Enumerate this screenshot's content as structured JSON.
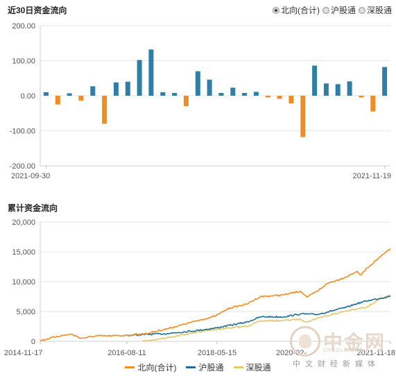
{
  "header": {
    "title_top": "近30日资金流向",
    "radios": [
      {
        "label": "北向(合计)",
        "selected": true
      },
      {
        "label": "沪股通",
        "selected": false
      },
      {
        "label": "深股通",
        "selected": false
      }
    ]
  },
  "title_bottom": "累计资金流向",
  "watermark": {
    "big": "中金网",
    "small": "中文财经新媒体",
    "en": "CNGOLD.ORG"
  },
  "colors": {
    "positive": "#2e7ea6",
    "negative": "#f08c22",
    "north": "#f08c22",
    "sh": "#1e6e96",
    "sz": "#e6c66b",
    "grid": "#e6e6e6"
  },
  "chart_data": [
    {
      "type": "bar",
      "title": "近30日资金流向",
      "ylim": [
        -200,
        200
      ],
      "yticks": [
        "200.00",
        "100.00",
        "0.00",
        "-100.00",
        "-200.00"
      ],
      "x_tick_labels": [
        "2021-09-30",
        "2021-11-19"
      ],
      "grid": true,
      "values": [
        10,
        -25,
        7,
        -14,
        27,
        -80,
        38,
        40,
        102,
        132,
        10,
        8,
        -30,
        70,
        46,
        8,
        23,
        8,
        11,
        -5,
        -9,
        -22,
        -118,
        86,
        35,
        33,
        41,
        -5,
        -45,
        82
      ]
    },
    {
      "type": "line",
      "title": "累计资金流向",
      "ylim": [
        0,
        20000
      ],
      "yticks": [
        "20,000",
        "15,000",
        "10,000",
        "5,000",
        "0"
      ],
      "x_tick_labels": [
        "2014-11-17",
        "2016-08-11",
        "2018-05-15",
        "2020-02-",
        "2021-11-18"
      ],
      "x_range": [
        "2014-11-17",
        "2021-11-18"
      ],
      "legend_position": "bottom",
      "series": [
        {
          "name": "北向(合计)",
          "color": "#f08c22",
          "x": [
            "2014-11-17",
            "2015-03-15",
            "2015-07-01",
            "2015-09-15",
            "2016-01-01",
            "2016-04-01",
            "2016-08-11",
            "2016-12-31",
            "2017-06-01",
            "2017-12-31",
            "2018-05-15",
            "2018-09-01",
            "2018-12-31",
            "2019-04-15",
            "2019-07-01",
            "2019-10-01",
            "2020-02-01",
            "2020-03-20",
            "2020-06-01",
            "2020-08-15",
            "2020-12-31",
            "2021-03-15",
            "2021-04-15",
            "2021-06-01",
            "2021-09-01",
            "2021-11-18"
          ],
          "y": [
            100,
            800,
            1200,
            500,
            900,
            900,
            1000,
            1300,
            2100,
            3400,
            4200,
            5600,
            6200,
            7500,
            7600,
            7800,
            8400,
            7400,
            8400,
            9700,
            10800,
            11700,
            11100,
            12300,
            14100,
            15500
          ]
        },
        {
          "name": "沪股通",
          "color": "#1e6e96",
          "x": [
            "2016-08-11",
            "2017-06-01",
            "2017-12-31",
            "2018-05-15",
            "2018-12-31",
            "2019-04-15",
            "2019-10-01",
            "2020-02-01",
            "2020-06-01",
            "2020-12-31",
            "2021-03-15",
            "2021-06-01",
            "2021-09-01",
            "2021-11-18"
          ],
          "y": [
            1000,
            1300,
            1800,
            2200,
            3200,
            4100,
            4100,
            4600,
            4500,
            5700,
            6300,
            6800,
            7200,
            7600
          ]
        },
        {
          "name": "深股通",
          "color": "#e6c66b",
          "x": [
            "2016-12-05",
            "2017-06-01",
            "2017-12-31",
            "2018-05-15",
            "2018-12-31",
            "2019-04-15",
            "2019-10-01",
            "2020-02-01",
            "2020-03-20",
            "2020-06-01",
            "2020-12-31",
            "2021-03-15",
            "2021-06-01",
            "2021-09-01",
            "2021-11-18"
          ],
          "y": [
            0,
            600,
            1500,
            2000,
            2500,
            3400,
            3500,
            3700,
            3200,
            3900,
            5100,
            5400,
            5800,
            7000,
            7700
          ]
        }
      ]
    }
  ]
}
